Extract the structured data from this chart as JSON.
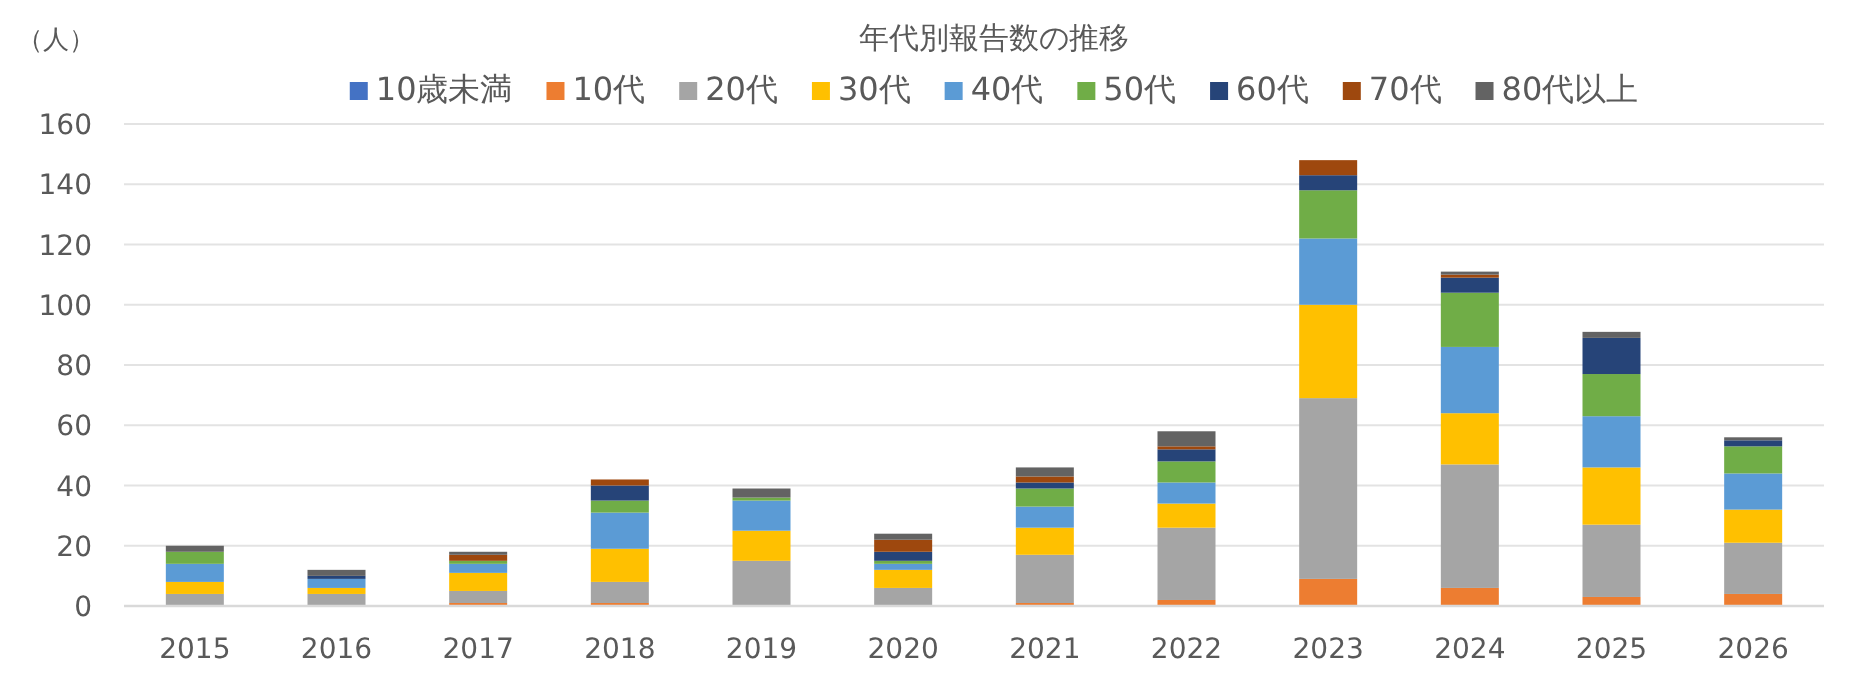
{
  "chart_data": {
    "type": "bar",
    "title": "年代別報告数の推移",
    "ylabel": "（人）",
    "stacked": true,
    "grid": "y",
    "legend": "top",
    "categories": [
      "2015",
      "2016",
      "2017",
      "2018",
      "2019",
      "2020",
      "2021",
      "2022",
      "2023",
      "2024",
      "2025",
      "2026"
    ],
    "ylim": [
      0,
      160
    ],
    "yticks": [
      0,
      20,
      40,
      60,
      80,
      100,
      120,
      140,
      160
    ],
    "series": [
      {
        "name": "10歳未満",
        "color": "#4472c4",
        "values": [
          0,
          0,
          0,
          0,
          0,
          0,
          0,
          0,
          0,
          0,
          0,
          0
        ]
      },
      {
        "name": "10代",
        "color": "#ed7d31",
        "values": [
          0,
          0,
          1,
          1,
          0,
          0,
          1,
          2,
          9,
          6,
          3,
          4
        ]
      },
      {
        "name": "20代",
        "color": "#a5a5a5",
        "values": [
          4,
          4,
          4,
          7,
          15,
          6,
          16,
          24,
          60,
          41,
          24,
          17
        ]
      },
      {
        "name": "30代",
        "color": "#ffc000",
        "values": [
          4,
          2,
          6,
          11,
          10,
          6,
          9,
          8,
          31,
          17,
          19,
          11
        ]
      },
      {
        "name": "40代",
        "color": "#5b9bd5",
        "values": [
          6,
          3,
          3,
          12,
          10,
          2,
          7,
          7,
          22,
          22,
          17,
          12
        ]
      },
      {
        "name": "50代",
        "color": "#70ad47",
        "values": [
          4,
          0,
          1,
          4,
          1,
          1,
          6,
          7,
          16,
          18,
          14,
          9
        ]
      },
      {
        "name": "60代",
        "color": "#264478",
        "values": [
          0,
          1,
          0,
          5,
          0,
          3,
          2,
          4,
          5,
          5,
          12,
          2
        ]
      },
      {
        "name": "70代",
        "color": "#9e480e",
        "values": [
          0,
          0,
          2,
          2,
          0,
          4,
          2,
          1,
          5,
          1,
          0,
          0
        ]
      },
      {
        "name": "80代以上",
        "color": "#636363",
        "values": [
          2,
          2,
          1,
          0,
          3,
          2,
          3,
          5,
          0,
          1,
          2,
          1
        ]
      }
    ]
  }
}
